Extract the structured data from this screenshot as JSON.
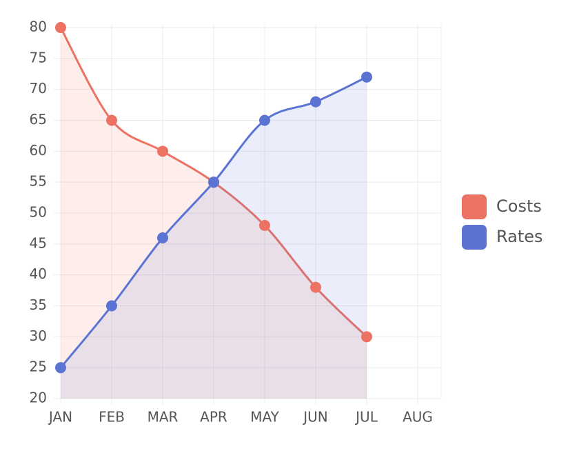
{
  "chart_data": {
    "type": "line",
    "categories": [
      "JAN",
      "FEB",
      "MAR",
      "APR",
      "MAY",
      "JUN",
      "JUL",
      "AUG"
    ],
    "series": [
      {
        "name": "Costs",
        "color": "#ec7263",
        "values": [
          80,
          65,
          60,
          55,
          48,
          38,
          30,
          null
        ]
      },
      {
        "name": "Rates",
        "color": "#5b73d2",
        "values": [
          25,
          35,
          46,
          55,
          65,
          68,
          72,
          null
        ]
      }
    ],
    "ylim": [
      20,
      80
    ],
    "yticks": [
      20,
      25,
      30,
      35,
      40,
      45,
      50,
      55,
      60,
      65,
      70,
      75,
      80
    ],
    "grid": true,
    "area": true,
    "smooth": true,
    "legend": "right"
  }
}
